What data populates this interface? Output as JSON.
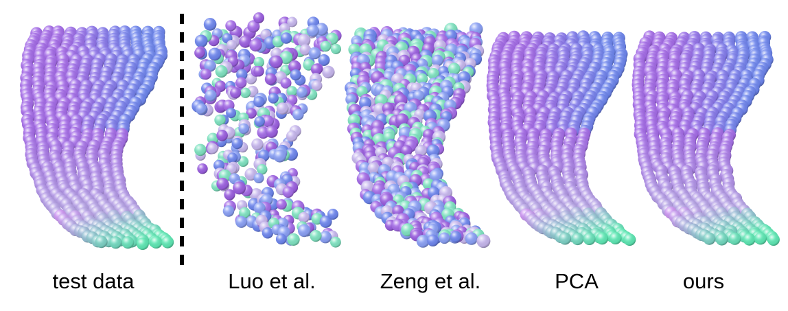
{
  "panels": [
    {
      "label": "test data",
      "style": "smooth"
    },
    {
      "label": "Luo et al.",
      "style": "scattered"
    },
    {
      "label": "Zeng et al.",
      "style": "noisy"
    },
    {
      "label": "PCA",
      "style": "smooth"
    },
    {
      "label": "ours",
      "style": "smooth"
    }
  ],
  "colors": {
    "top_right": "#6e86ee",
    "upper_left": "#a56ce8",
    "middle": "#b7a6e6",
    "bottom_tip": "#5ee8b4",
    "noise_palette": [
      "#a56ce8",
      "#6e86ee",
      "#c7b7ee",
      "#7fe3c1",
      "#9b5fe0",
      "#8aa0f5"
    ]
  }
}
